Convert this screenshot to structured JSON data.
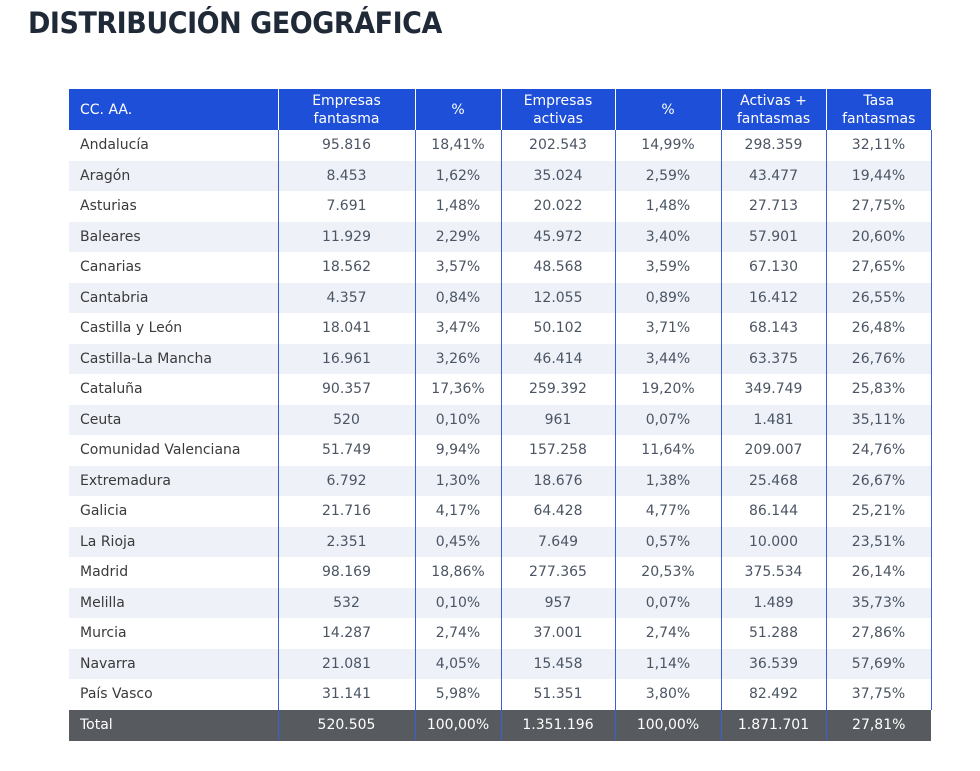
{
  "title": "DISTRIBUCIÓN GEOGRÁFICA",
  "table": {
    "headers": [
      [
        "CC. AA."
      ],
      [
        "Empresas",
        "fantasma"
      ],
      [
        "%"
      ],
      [
        "Empresas",
        "activas"
      ],
      [
        "%"
      ],
      [
        "Activas +",
        "fantasmas"
      ],
      [
        "Tasa",
        "fantasmas"
      ]
    ],
    "rows": [
      [
        "Andalucía",
        "95.816",
        "18,41%",
        "202.543",
        "14,99%",
        "298.359",
        "32,11%"
      ],
      [
        "Aragón",
        "8.453",
        "1,62%",
        "35.024",
        "2,59%",
        "43.477",
        "19,44%"
      ],
      [
        "Asturias",
        "7.691",
        "1,48%",
        "20.022",
        "1,48%",
        "27.713",
        "27,75%"
      ],
      [
        "Baleares",
        "11.929",
        "2,29%",
        "45.972",
        "3,40%",
        "57.901",
        "20,60%"
      ],
      [
        "Canarias",
        "18.562",
        "3,57%",
        "48.568",
        "3,59%",
        "67.130",
        "27,65%"
      ],
      [
        "Cantabria",
        "4.357",
        "0,84%",
        "12.055",
        "0,89%",
        "16.412",
        "26,55%"
      ],
      [
        "Castilla y León",
        "18.041",
        "3,47%",
        "50.102",
        "3,71%",
        "68.143",
        "26,48%"
      ],
      [
        "Castilla-La Mancha",
        "16.961",
        "3,26%",
        "46.414",
        "3,44%",
        "63.375",
        "26,76%"
      ],
      [
        "Cataluña",
        "90.357",
        "17,36%",
        "259.392",
        "19,20%",
        "349.749",
        "25,83%"
      ],
      [
        "Ceuta",
        "520",
        "0,10%",
        "961",
        "0,07%",
        "1.481",
        "35,11%"
      ],
      [
        "Comunidad Valenciana",
        "51.749",
        "9,94%",
        "157.258",
        "11,64%",
        "209.007",
        "24,76%"
      ],
      [
        "Extremadura",
        "6.792",
        "1,30%",
        "18.676",
        "1,38%",
        "25.468",
        "26,67%"
      ],
      [
        "Galicia",
        "21.716",
        "4,17%",
        "64.428",
        "4,77%",
        "86.144",
        "25,21%"
      ],
      [
        "La Rioja",
        "2.351",
        "0,45%",
        "7.649",
        "0,57%",
        "10.000",
        "23,51%"
      ],
      [
        "Madrid",
        "98.169",
        "18,86%",
        "277.365",
        "20,53%",
        "375.534",
        "26,14%"
      ],
      [
        "Melilla",
        "532",
        "0,10%",
        "957",
        "0,07%",
        "1.489",
        "35,73%"
      ],
      [
        "Murcia",
        "14.287",
        "2,74%",
        "37.001",
        "2,74%",
        "51.288",
        "27,86%"
      ],
      [
        "Navarra",
        "21.081",
        "4,05%",
        "15.458",
        "1,14%",
        "36.539",
        "57,69%"
      ],
      [
        "País Vasco",
        "31.141",
        "5,98%",
        "51.351",
        "3,80%",
        "82.492",
        "37,75%"
      ]
    ],
    "total": [
      "Total",
      "520.505",
      "100,00%",
      "1.351.196",
      "100,00%",
      "1.871.701",
      "27,81%"
    ]
  },
  "colors": {
    "header_bg": "#1d4fd8",
    "total_bg": "#575a5e",
    "stripe_bg": "#eef1f8",
    "title_text": "#1f2937"
  }
}
